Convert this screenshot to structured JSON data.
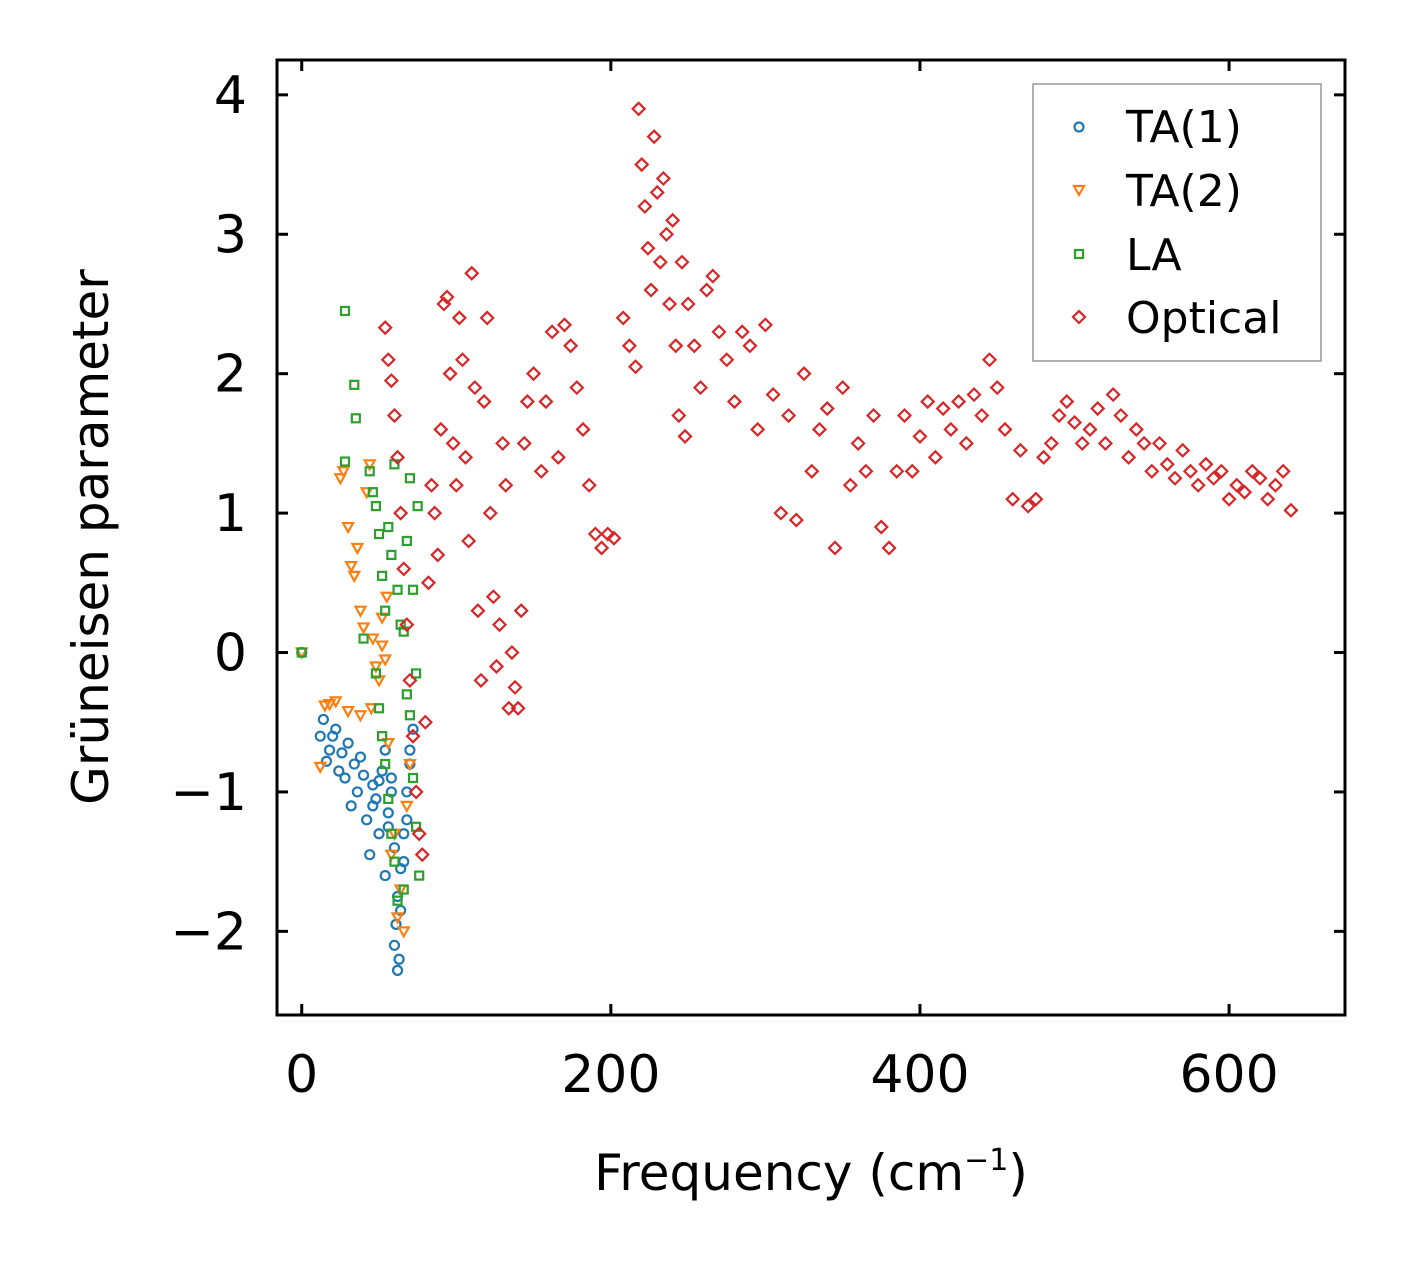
{
  "chart_data": {
    "type": "scatter",
    "title": "",
    "xlabel": "Frequency (cm",
    "xlabel_sup": "−1",
    "xlabel_close": ")",
    "ylabel": "Grüneisen parameter",
    "xlim": [
      -16,
      675
    ],
    "ylim": [
      -2.6,
      4.25
    ],
    "x_ticks": [
      0,
      200,
      400,
      600
    ],
    "x_tick_labels": [
      "0",
      "200",
      "400",
      "600"
    ],
    "y_ticks": [
      -2,
      -1,
      0,
      1,
      2,
      3,
      4
    ],
    "y_tick_labels": [
      "−2",
      "−1",
      "0",
      "1",
      "2",
      "3",
      "4"
    ],
    "legend_position": "top-right",
    "series": [
      {
        "name": "TA(1)",
        "marker": "circle",
        "color": "#1f77b4",
        "points": [
          [
            0,
            0
          ],
          [
            12,
            -0.6
          ],
          [
            14,
            -0.48
          ],
          [
            16,
            -0.78
          ],
          [
            18,
            -0.7
          ],
          [
            20,
            -0.6
          ],
          [
            22,
            -0.55
          ],
          [
            24,
            -0.85
          ],
          [
            26,
            -0.72
          ],
          [
            28,
            -0.9
          ],
          [
            30,
            -0.65
          ],
          [
            32,
            -1.1
          ],
          [
            34,
            -0.8
          ],
          [
            36,
            -1.0
          ],
          [
            38,
            -0.75
          ],
          [
            40,
            -0.88
          ],
          [
            42,
            -1.2
          ],
          [
            44,
            -1.45
          ],
          [
            46,
            -0.95
          ],
          [
            48,
            -1.05
          ],
          [
            50,
            -1.3
          ],
          [
            52,
            -0.85
          ],
          [
            54,
            -1.6
          ],
          [
            56,
            -1.15
          ],
          [
            58,
            -0.9
          ],
          [
            60,
            -1.4
          ],
          [
            62,
            -1.75
          ],
          [
            64,
            -1.55
          ],
          [
            66,
            -1.3
          ],
          [
            68,
            -1.0
          ],
          [
            70,
            -0.7
          ],
          [
            72,
            -0.55
          ],
          [
            60,
            -2.1
          ],
          [
            61,
            -1.95
          ],
          [
            62,
            -2.28
          ],
          [
            63,
            -2.2
          ],
          [
            64,
            -1.85
          ],
          [
            66,
            -1.5
          ],
          [
            68,
            -1.2
          ],
          [
            70,
            -0.8
          ],
          [
            56,
            -1.25
          ],
          [
            50,
            -0.92
          ],
          [
            46,
            -1.1
          ],
          [
            54,
            -0.7
          ],
          [
            58,
            -1.0
          ]
        ]
      },
      {
        "name": "TA(2)",
        "marker": "triangle-down",
        "color": "#ff7f0e",
        "points": [
          [
            0,
            0
          ],
          [
            12,
            -0.82
          ],
          [
            15,
            -0.38
          ],
          [
            18,
            -0.37
          ],
          [
            22,
            -0.35
          ],
          [
            25,
            1.25
          ],
          [
            27,
            1.3
          ],
          [
            30,
            0.9
          ],
          [
            32,
            0.62
          ],
          [
            34,
            0.55
          ],
          [
            36,
            0.75
          ],
          [
            38,
            0.3
          ],
          [
            40,
            0.18
          ],
          [
            42,
            1.15
          ],
          [
            44,
            1.35
          ],
          [
            46,
            0.1
          ],
          [
            48,
            -0.1
          ],
          [
            50,
            -0.2
          ],
          [
            52,
            0.25
          ],
          [
            54,
            -0.05
          ],
          [
            56,
            -0.65
          ],
          [
            58,
            -1.45
          ],
          [
            60,
            -1.3
          ],
          [
            62,
            -1.9
          ],
          [
            64,
            -1.7
          ],
          [
            66,
            -2.0
          ],
          [
            68,
            -1.1
          ],
          [
            70,
            -0.8
          ],
          [
            45,
            -0.4
          ],
          [
            38,
            -0.45
          ],
          [
            30,
            -0.42
          ],
          [
            52,
            0.05
          ],
          [
            55,
            0.4
          ]
        ]
      },
      {
        "name": "LA",
        "marker": "square",
        "color": "#2ca02c",
        "points": [
          [
            0,
            0
          ],
          [
            28,
            2.45
          ],
          [
            34,
            1.92
          ],
          [
            35,
            1.68
          ],
          [
            28,
            1.37
          ],
          [
            40,
            0.1
          ],
          [
            44,
            1.3
          ],
          [
            46,
            1.15
          ],
          [
            48,
            1.05
          ],
          [
            50,
            0.85
          ],
          [
            52,
            0.55
          ],
          [
            54,
            0.3
          ],
          [
            56,
            0.9
          ],
          [
            58,
            0.7
          ],
          [
            60,
            1.35
          ],
          [
            62,
            0.45
          ],
          [
            64,
            0.2
          ],
          [
            66,
            0.15
          ],
          [
            68,
            -0.3
          ],
          [
            70,
            -0.45
          ],
          [
            72,
            -0.9
          ],
          [
            74,
            -1.25
          ],
          [
            76,
            -1.6
          ],
          [
            66,
            -1.7
          ],
          [
            62,
            -1.78
          ],
          [
            60,
            -1.5
          ],
          [
            58,
            -1.3
          ],
          [
            56,
            -1.05
          ],
          [
            54,
            -0.8
          ],
          [
            52,
            -0.6
          ],
          [
            50,
            -0.4
          ],
          [
            48,
            -0.15
          ],
          [
            72,
            0.45
          ],
          [
            74,
            -0.15
          ],
          [
            70,
            1.25
          ],
          [
            75,
            1.05
          ],
          [
            68,
            0.8
          ]
        ]
      },
      {
        "name": "Optical",
        "marker": "diamond",
        "color": "#d62728",
        "points": [
          [
            54,
            2.33
          ],
          [
            56,
            2.1
          ],
          [
            58,
            1.95
          ],
          [
            60,
            1.7
          ],
          [
            62,
            1.4
          ],
          [
            64,
            1.0
          ],
          [
            66,
            0.6
          ],
          [
            68,
            0.2
          ],
          [
            70,
            -0.2
          ],
          [
            72,
            -0.6
          ],
          [
            74,
            -1.0
          ],
          [
            76,
            -1.3
          ],
          [
            78,
            -1.45
          ],
          [
            80,
            -0.5
          ],
          [
            82,
            0.5
          ],
          [
            84,
            1.2
          ],
          [
            86,
            1.0
          ],
          [
            88,
            0.7
          ],
          [
            90,
            1.6
          ],
          [
            92,
            2.5
          ],
          [
            94,
            2.55
          ],
          [
            96,
            2.0
          ],
          [
            98,
            1.5
          ],
          [
            100,
            1.2
          ],
          [
            102,
            2.4
          ],
          [
            104,
            2.1
          ],
          [
            106,
            1.4
          ],
          [
            108,
            0.8
          ],
          [
            110,
            2.72
          ],
          [
            112,
            1.9
          ],
          [
            114,
            0.3
          ],
          [
            116,
            -0.2
          ],
          [
            118,
            1.8
          ],
          [
            120,
            2.4
          ],
          [
            122,
            1.0
          ],
          [
            124,
            0.4
          ],
          [
            126,
            -0.1
          ],
          [
            128,
            0.2
          ],
          [
            130,
            1.5
          ],
          [
            132,
            1.2
          ],
          [
            134,
            -0.4
          ],
          [
            136,
            0.0
          ],
          [
            138,
            -0.25
          ],
          [
            140,
            -0.4
          ],
          [
            142,
            0.3
          ],
          [
            144,
            1.5
          ],
          [
            146,
            1.8
          ],
          [
            150,
            2.0
          ],
          [
            155,
            1.3
          ],
          [
            158,
            1.8
          ],
          [
            162,
            2.3
          ],
          [
            166,
            1.4
          ],
          [
            170,
            2.35
          ],
          [
            174,
            2.2
          ],
          [
            178,
            1.9
          ],
          [
            182,
            1.6
          ],
          [
            186,
            1.2
          ],
          [
            190,
            0.85
          ],
          [
            194,
            0.75
          ],
          [
            198,
            0.85
          ],
          [
            202,
            0.82
          ],
          [
            208,
            2.4
          ],
          [
            212,
            2.2
          ],
          [
            216,
            2.05
          ],
          [
            218,
            3.9
          ],
          [
            220,
            3.5
          ],
          [
            222,
            3.2
          ],
          [
            224,
            2.9
          ],
          [
            226,
            2.6
          ],
          [
            228,
            3.7
          ],
          [
            230,
            3.3
          ],
          [
            232,
            2.8
          ],
          [
            234,
            3.4
          ],
          [
            236,
            3.0
          ],
          [
            238,
            2.5
          ],
          [
            240,
            3.1
          ],
          [
            242,
            2.2
          ],
          [
            244,
            1.7
          ],
          [
            246,
            2.8
          ],
          [
            248,
            1.55
          ],
          [
            250,
            2.5
          ],
          [
            254,
            2.2
          ],
          [
            258,
            1.9
          ],
          [
            262,
            2.6
          ],
          [
            266,
            2.7
          ],
          [
            270,
            2.3
          ],
          [
            275,
            2.1
          ],
          [
            280,
            1.8
          ],
          [
            285,
            2.3
          ],
          [
            290,
            2.2
          ],
          [
            295,
            1.6
          ],
          [
            300,
            2.35
          ],
          [
            305,
            1.85
          ],
          [
            310,
            1.0
          ],
          [
            315,
            1.7
          ],
          [
            320,
            0.95
          ],
          [
            325,
            2.0
          ],
          [
            330,
            1.3
          ],
          [
            335,
            1.6
          ],
          [
            340,
            1.75
          ],
          [
            345,
            0.75
          ],
          [
            350,
            1.9
          ],
          [
            355,
            1.2
          ],
          [
            360,
            1.5
          ],
          [
            365,
            1.3
          ],
          [
            370,
            1.7
          ],
          [
            375,
            0.9
          ],
          [
            380,
            0.75
          ],
          [
            385,
            1.3
          ],
          [
            390,
            1.7
          ],
          [
            395,
            1.3
          ],
          [
            400,
            1.55
          ],
          [
            405,
            1.8
          ],
          [
            410,
            1.4
          ],
          [
            415,
            1.75
          ],
          [
            420,
            1.6
          ],
          [
            425,
            1.8
          ],
          [
            430,
            1.5
          ],
          [
            435,
            1.85
          ],
          [
            440,
            1.7
          ],
          [
            445,
            2.1
          ],
          [
            450,
            1.9
          ],
          [
            455,
            1.6
          ],
          [
            460,
            1.1
          ],
          [
            465,
            1.45
          ],
          [
            470,
            1.05
          ],
          [
            475,
            1.1
          ],
          [
            480,
            1.4
          ],
          [
            485,
            1.5
          ],
          [
            490,
            1.7
          ],
          [
            495,
            1.8
          ],
          [
            500,
            1.65
          ],
          [
            505,
            1.5
          ],
          [
            510,
            1.6
          ],
          [
            515,
            1.75
          ],
          [
            520,
            1.5
          ],
          [
            525,
            1.85
          ],
          [
            530,
            1.7
          ],
          [
            535,
            1.4
          ],
          [
            540,
            1.6
          ],
          [
            545,
            1.5
          ],
          [
            550,
            1.3
          ],
          [
            555,
            1.5
          ],
          [
            560,
            1.35
          ],
          [
            565,
            1.25
          ],
          [
            570,
            1.45
          ],
          [
            575,
            1.3
          ],
          [
            580,
            1.2
          ],
          [
            585,
            1.35
          ],
          [
            590,
            1.25
          ],
          [
            595,
            1.3
          ],
          [
            600,
            1.1
          ],
          [
            605,
            1.2
          ],
          [
            610,
            1.15
          ],
          [
            615,
            1.3
          ],
          [
            620,
            1.25
          ],
          [
            625,
            1.1
          ],
          [
            630,
            1.2
          ],
          [
            635,
            1.3
          ],
          [
            640,
            1.02
          ]
        ]
      }
    ]
  }
}
